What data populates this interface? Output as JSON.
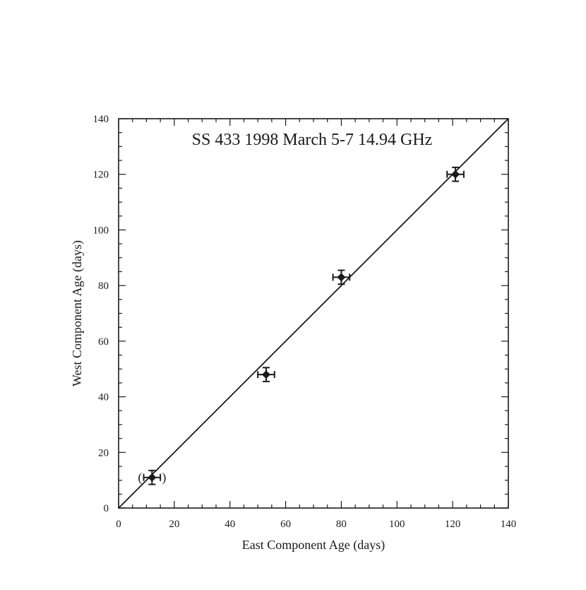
{
  "chart_data": {
    "type": "scatter",
    "title": "SS 433  1998 March 5-7  14.94 GHz",
    "xlabel": "East Component Age (days)",
    "ylabel": "West Component Age (days)",
    "xlim": [
      0,
      140
    ],
    "ylim": [
      0,
      140
    ],
    "xticks": [
      0,
      20,
      40,
      60,
      80,
      100,
      120,
      140
    ],
    "yticks": [
      0,
      20,
      40,
      60,
      80,
      100,
      120,
      140
    ],
    "minor_tick_step": 5,
    "grid": false,
    "points": [
      {
        "x": 12,
        "y": 11,
        "xerr": 3,
        "yerr": 2.5,
        "parenthesized": true
      },
      {
        "x": 53,
        "y": 48,
        "xerr": 3,
        "yerr": 2.5,
        "parenthesized": false
      },
      {
        "x": 80,
        "y": 83,
        "xerr": 3,
        "yerr": 2.5,
        "parenthesized": false
      },
      {
        "x": 121,
        "y": 120,
        "xerr": 3,
        "yerr": 2.5,
        "parenthesized": false
      }
    ],
    "reference_line": {
      "from": [
        0,
        0
      ],
      "to": [
        140,
        140
      ]
    },
    "colors": {
      "ink": "#1a1a1a",
      "background": "#ffffff"
    }
  }
}
